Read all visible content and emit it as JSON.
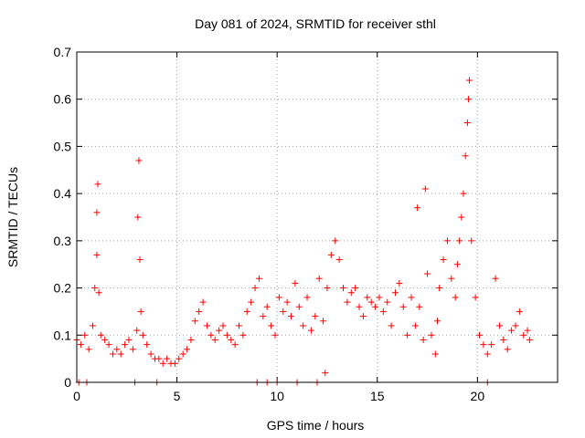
{
  "chart_data": {
    "type": "scatter",
    "title": "Day 081 of 2024, SRMTID for receiver sthl",
    "xlabel": "GPS time / hours",
    "ylabel": "SRMTID / TECUs",
    "xlim": [
      0,
      24
    ],
    "ylim": [
      0,
      0.7
    ],
    "xticks": [
      0,
      5,
      10,
      15,
      20
    ],
    "yticks": [
      0,
      0.1,
      0.2,
      0.3,
      0.4,
      0.5,
      0.6,
      0.7
    ],
    "xtick_labels": [
      "0",
      "5",
      "10",
      "15",
      "20"
    ],
    "ytick_labels": [
      "0",
      "0.1",
      "0.2",
      "0.3",
      "0.4",
      "0.5",
      "0.6",
      "0.7"
    ],
    "grid": true,
    "marker": "+",
    "color": "#ff0000",
    "series": [
      {
        "name": "SRMTID",
        "x": [
          0.0,
          0.2,
          0.4,
          0.6,
          0.8,
          0.9,
          1.0,
          1.0,
          1.05,
          1.1,
          1.2,
          1.4,
          1.6,
          1.8,
          2.0,
          2.2,
          2.4,
          2.6,
          2.8,
          3.0,
          3.05,
          3.1,
          3.15,
          3.2,
          3.3,
          3.5,
          3.7,
          3.9,
          4.1,
          4.3,
          4.5,
          4.7,
          4.9,
          5.1,
          5.3,
          5.5,
          5.7,
          5.9,
          6.1,
          6.3,
          6.5,
          6.7,
          6.9,
          7.1,
          7.3,
          7.5,
          7.7,
          7.9,
          8.1,
          8.3,
          8.5,
          8.7,
          8.9,
          9.1,
          9.3,
          9.5,
          9.7,
          9.9,
          10.1,
          10.3,
          10.5,
          10.7,
          10.9,
          11.1,
          11.3,
          11.5,
          11.7,
          11.9,
          12.1,
          12.3,
          12.5,
          12.7,
          12.9,
          13.1,
          13.3,
          13.5,
          13.7,
          13.9,
          14.1,
          14.3,
          14.5,
          14.7,
          14.9,
          15.1,
          15.3,
          15.5,
          15.7,
          15.9,
          16.1,
          16.3,
          16.5,
          16.7,
          16.9,
          17.0,
          17.1,
          17.3,
          17.5,
          17.7,
          17.9,
          18.0,
          18.1,
          18.3,
          18.5,
          18.7,
          18.9,
          19.0,
          19.1,
          19.2,
          19.3,
          19.4,
          19.5,
          19.55,
          19.6,
          19.7,
          19.9,
          20.1,
          20.3,
          20.5,
          20.7,
          20.9,
          21.1,
          21.3,
          21.5,
          21.7,
          21.9,
          22.1,
          22.3,
          22.5,
          22.6,
          0.1,
          0.5,
          2.9,
          4.0,
          9.0,
          9.5,
          10.0,
          11.0,
          12.0,
          12.4,
          17.4,
          20.5
        ],
        "y": [
          0.09,
          0.08,
          0.1,
          0.07,
          0.12,
          0.2,
          0.27,
          0.36,
          0.42,
          0.19,
          0.1,
          0.09,
          0.08,
          0.06,
          0.07,
          0.06,
          0.08,
          0.09,
          0.07,
          0.11,
          0.35,
          0.47,
          0.26,
          0.15,
          0.1,
          0.08,
          0.06,
          0.05,
          0.05,
          0.04,
          0.05,
          0.04,
          0.04,
          0.05,
          0.06,
          0.07,
          0.09,
          0.13,
          0.15,
          0.17,
          0.12,
          0.1,
          0.09,
          0.11,
          0.12,
          0.1,
          0.09,
          0.08,
          0.12,
          0.1,
          0.15,
          0.17,
          0.2,
          0.22,
          0.14,
          0.16,
          0.12,
          0.1,
          0.18,
          0.15,
          0.17,
          0.14,
          0.21,
          0.16,
          0.12,
          0.18,
          0.11,
          0.14,
          0.22,
          0.13,
          0.2,
          0.27,
          0.3,
          0.26,
          0.2,
          0.17,
          0.19,
          0.2,
          0.16,
          0.14,
          0.18,
          0.17,
          0.16,
          0.18,
          0.15,
          0.17,
          0.12,
          0.19,
          0.21,
          0.16,
          0.1,
          0.18,
          0.12,
          0.37,
          0.16,
          0.09,
          0.23,
          0.1,
          0.06,
          0.13,
          0.2,
          0.26,
          0.3,
          0.22,
          0.18,
          0.25,
          0.3,
          0.35,
          0.4,
          0.48,
          0.55,
          0.6,
          0.64,
          0.3,
          0.18,
          0.1,
          0.08,
          0.06,
          0.08,
          0.22,
          0.12,
          0.09,
          0.07,
          0.11,
          0.12,
          0.15,
          0.1,
          0.11,
          0.09,
          0.0,
          0.0,
          0.0,
          0.0,
          0.0,
          0.0,
          0.0,
          0.0,
          0.0,
          0.02,
          0.41,
          0.0
        ]
      }
    ]
  }
}
